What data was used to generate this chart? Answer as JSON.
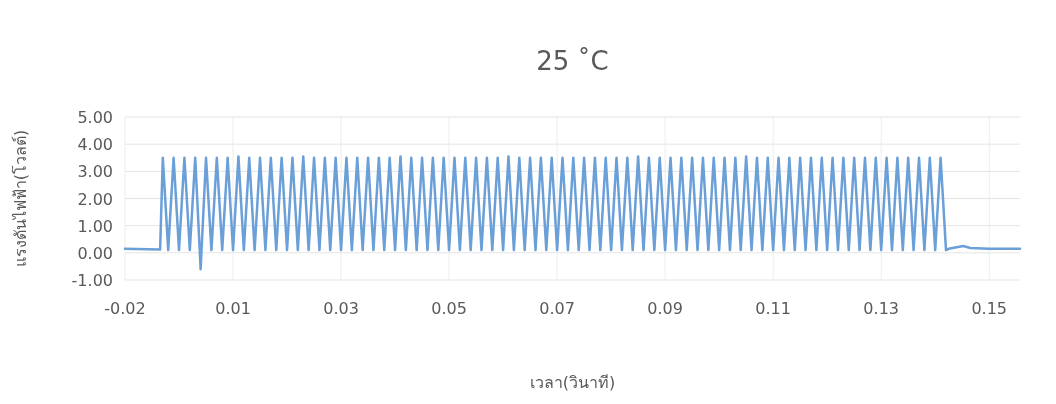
{
  "chart_data": {
    "type": "line",
    "title": "25 ˚C",
    "xlabel": "เวลา(วินาที)",
    "ylabel": "แรงดันไฟฟ้า(โวลต์)",
    "x": [
      -0.015,
      -0.0085,
      -0.008,
      -0.007,
      -0.006,
      -0.005,
      -0.004,
      -0.003,
      -0.002,
      -0.001,
      0,
      0.001,
      0.002,
      0.003,
      0.004,
      0.005,
      0.006,
      0.007,
      0.008,
      0.009,
      0.01,
      0.011,
      0.012,
      0.013,
      0.014,
      0.015,
      0.016,
      0.017,
      0.018,
      0.019,
      0.02,
      0.021,
      0.022,
      0.023,
      0.024,
      0.025,
      0.026,
      0.027,
      0.028,
      0.029,
      0.03,
      0.031,
      0.032,
      0.033,
      0.034,
      0.035,
      0.036,
      0.037,
      0.038,
      0.039,
      0.04,
      0.041,
      0.042,
      0.043,
      0.044,
      0.045,
      0.046,
      0.047,
      0.048,
      0.049,
      0.05,
      0.051,
      0.052,
      0.053,
      0.054,
      0.055,
      0.056,
      0.057,
      0.058,
      0.059,
      0.06,
      0.061,
      0.062,
      0.063,
      0.064,
      0.065,
      0.066,
      0.067,
      0.068,
      0.069,
      0.07,
      0.071,
      0.072,
      0.073,
      0.074,
      0.075,
      0.076,
      0.077,
      0.078,
      0.079,
      0.08,
      0.081,
      0.082,
      0.083,
      0.084,
      0.085,
      0.086,
      0.087,
      0.088,
      0.089,
      0.09,
      0.091,
      0.092,
      0.093,
      0.094,
      0.095,
      0.096,
      0.097,
      0.098,
      0.099,
      0.1,
      0.101,
      0.102,
      0.103,
      0.104,
      0.105,
      0.106,
      0.107,
      0.108,
      0.109,
      0.11,
      0.111,
      0.112,
      0.113,
      0.114,
      0.115,
      0.116,
      0.117,
      0.118,
      0.119,
      0.12,
      0.121,
      0.122,
      0.123,
      0.124,
      0.125,
      0.126,
      0.127,
      0.128,
      0.129,
      0.13,
      0.131,
      0.132,
      0.133,
      0.134,
      0.135,
      0.136,
      0.137,
      0.1375,
      0.1402,
      0.1415,
      0.145,
      0.1507
    ],
    "series": [
      {
        "color": "#6a9fd8",
        "values": [
          0.15,
          0.12,
          3.5,
          0.1,
          3.5,
          0.1,
          3.5,
          0.1,
          3.5,
          -0.6,
          3.5,
          0.1,
          3.5,
          0.1,
          3.5,
          0.1,
          3.55,
          0.1,
          3.5,
          0.1,
          3.5,
          0.1,
          3.5,
          0.1,
          3.5,
          0.1,
          3.5,
          0.1,
          3.55,
          0.1,
          3.5,
          0.1,
          3.5,
          0.1,
          3.5,
          0.1,
          3.5,
          0.1,
          3.5,
          0.1,
          3.5,
          0.1,
          3.5,
          0.1,
          3.5,
          0.1,
          3.55,
          0.1,
          3.5,
          0.1,
          3.5,
          0.1,
          3.5,
          0.1,
          3.5,
          0.1,
          3.5,
          0.1,
          3.5,
          0.1,
          3.5,
          0.1,
          3.5,
          0.1,
          3.5,
          0.1,
          3.55,
          0.1,
          3.5,
          0.1,
          3.5,
          0.1,
          3.5,
          0.1,
          3.5,
          0.1,
          3.5,
          0.1,
          3.5,
          0.1,
          3.5,
          0.1,
          3.5,
          0.1,
          3.5,
          0.1,
          3.5,
          0.1,
          3.5,
          0.1,
          3.55,
          0.1,
          3.5,
          0.1,
          3.5,
          0.1,
          3.5,
          0.1,
          3.5,
          0.1,
          3.5,
          0.1,
          3.5,
          0.1,
          3.5,
          0.1,
          3.5,
          0.1,
          3.5,
          0.1,
          3.55,
          0.1,
          3.5,
          0.1,
          3.5,
          0.1,
          3.5,
          0.1,
          3.5,
          0.1,
          3.5,
          0.1,
          3.5,
          0.1,
          3.5,
          0.1,
          3.5,
          0.1,
          3.5,
          0.1,
          3.5,
          0.1,
          3.5,
          0.1,
          3.5,
          0.1,
          3.5,
          0.1,
          3.5,
          0.1,
          3.5,
          0.1,
          3.5,
          0.1,
          3.5,
          0.1,
          3.5,
          0.1,
          0.15,
          0.25,
          0.18,
          0.15,
          0.15
        ]
      }
    ],
    "xlim": [
      -0.015,
      0.1507
    ],
    "ylim": [
      -1,
      5
    ],
    "xticks": [
      {
        "value": -0.015,
        "label": "-0.02"
      },
      {
        "value": 0.005,
        "label": "0.01"
      },
      {
        "value": 0.025,
        "label": "0.03"
      },
      {
        "value": 0.045,
        "label": "0.05"
      },
      {
        "value": 0.065,
        "label": "0.07"
      },
      {
        "value": 0.085,
        "label": "0.09"
      },
      {
        "value": 0.105,
        "label": "0.11"
      },
      {
        "value": 0.125,
        "label": "0.13"
      },
      {
        "value": 0.145,
        "label": "0.15"
      }
    ],
    "yticks": [
      {
        "value": 5,
        "label": "5.00"
      },
      {
        "value": 4,
        "label": "4.00"
      },
      {
        "value": 3,
        "label": "3.00"
      },
      {
        "value": 2,
        "label": "2.00"
      },
      {
        "value": 1,
        "label": "1.00"
      },
      {
        "value": 0,
        "label": "0.00"
      },
      {
        "value": -1,
        "label": "-1.00"
      }
    ],
    "grid": true
  }
}
